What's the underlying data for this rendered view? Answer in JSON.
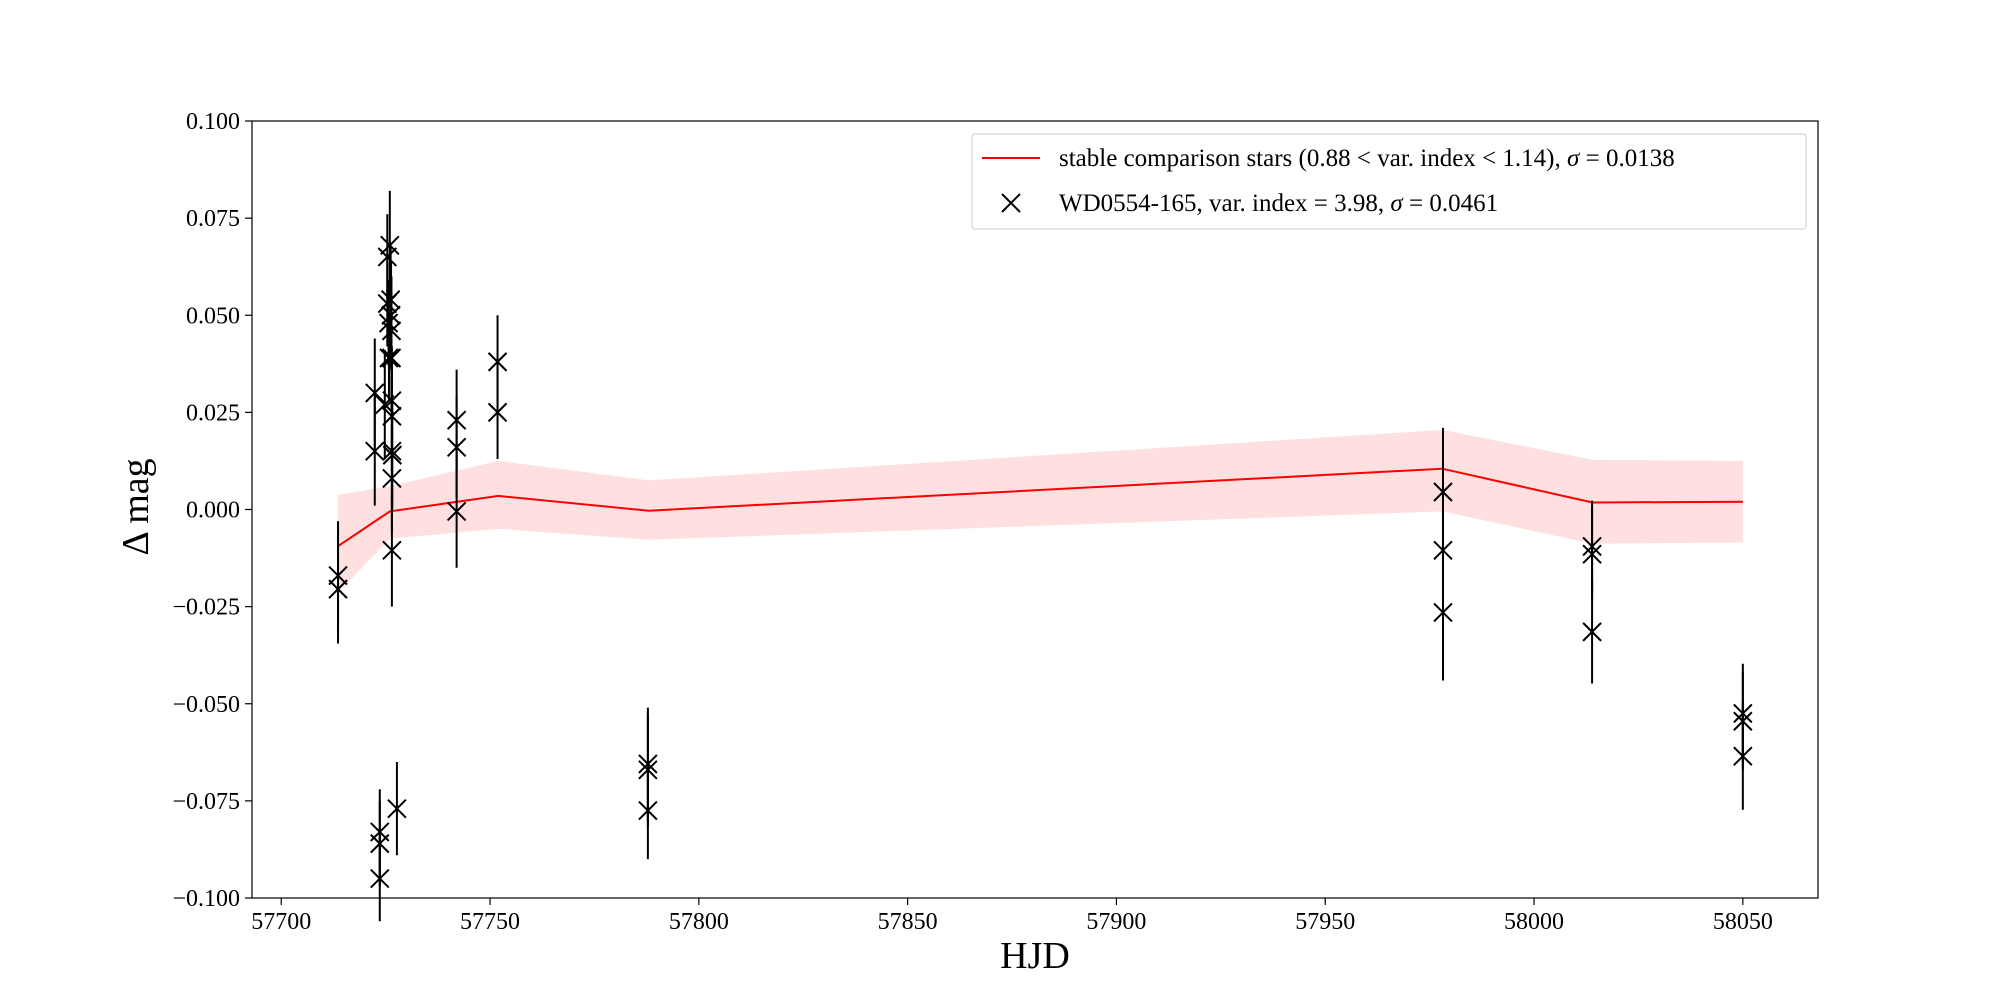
{
  "chart_data": {
    "type": "scatter",
    "xlabel": "HJD",
    "ylabel": "Δ mag",
    "xlim": [
      57693,
      58068
    ],
    "ylim": [
      -0.1,
      0.1
    ],
    "xticks": [
      57700,
      57750,
      57800,
      57850,
      57900,
      57950,
      58000,
      58050
    ],
    "xtick_labels": [
      "57700",
      "57750",
      "57800",
      "57850",
      "57900",
      "57950",
      "58000",
      "58050"
    ],
    "yticks": [
      0.1,
      0.075,
      0.05,
      0.025,
      0.0,
      -0.025,
      -0.05,
      -0.075,
      -0.1
    ],
    "ytick_labels": [
      "0.100",
      "0.075",
      "0.050",
      "0.025",
      "0.000",
      "−0.025",
      "−0.050",
      "−0.075",
      "−0.100"
    ],
    "grid": false,
    "legend_position": "top-right",
    "legend": [
      {
        "label_parts": [
          "stable comparison stars (0.88 ",
          "<",
          " var. index ",
          "<",
          " 1.14), ",
          "σ",
          " = 0.0138"
        ],
        "marker": "line"
      },
      {
        "label_parts": [
          "WD0554-165, var. index = 3.98, ",
          "σ",
          " = 0.0461"
        ],
        "marker": "x"
      }
    ],
    "series": [
      {
        "name": "stable comparison stars (0.88 < var. index < 1.14), σ = 0.0138",
        "kind": "line_with_band",
        "color": "#ff0000",
        "band_color": "#ff0000",
        "x": [
          57713.5,
          57726,
          57752,
          57788,
          57978,
          58014,
          58050
        ],
        "y": [
          -0.0095,
          -0.0005,
          0.0035,
          -0.0003,
          0.0105,
          0.0018,
          0.002
        ],
        "lower": [
          -0.0215,
          -0.0075,
          -0.005,
          -0.0078,
          -0.0005,
          -0.0088,
          -0.0085
        ],
        "upper": [
          0.0038,
          0.006,
          0.0125,
          0.0075,
          0.0205,
          0.0128,
          0.0125
        ]
      },
      {
        "name": "WD0554-165, var. index = 3.98, σ = 0.0461",
        "kind": "errorbar_scatter",
        "color": "#000000",
        "points": [
          {
            "x": 57713.6,
            "y": -0.017,
            "err": 0.014
          },
          {
            "x": 57713.6,
            "y": -0.0205,
            "err": 0.014
          },
          {
            "x": 57722.4,
            "y": 0.03,
            "err": 0.014
          },
          {
            "x": 57722.4,
            "y": 0.015,
            "err": 0.014
          },
          {
            "x": 57723.6,
            "y": -0.083,
            "err": 0.011
          },
          {
            "x": 57723.6,
            "y": -0.086,
            "err": 0.011
          },
          {
            "x": 57723.6,
            "y": -0.095,
            "err": 0.011
          },
          {
            "x": 57724.8,
            "y": 0.027,
            "err": 0.014
          },
          {
            "x": 57725.4,
            "y": 0.065,
            "err": 0.011
          },
          {
            "x": 57725.4,
            "y": 0.053,
            "err": 0.011
          },
          {
            "x": 57725.7,
            "y": 0.048,
            "err": 0.011
          },
          {
            "x": 57725.8,
            "y": 0.039,
            "err": 0.011
          },
          {
            "x": 57726.0,
            "y": 0.068,
            "err": 0.014
          },
          {
            "x": 57726.2,
            "y": 0.054,
            "err": 0.014
          },
          {
            "x": 57726.3,
            "y": 0.05,
            "err": 0.014
          },
          {
            "x": 57726.4,
            "y": 0.046,
            "err": 0.014
          },
          {
            "x": 57726.4,
            "y": 0.039,
            "err": 0.014
          },
          {
            "x": 57726.5,
            "y": 0.028,
            "err": 0.014
          },
          {
            "x": 57726.5,
            "y": 0.024,
            "err": 0.014
          },
          {
            "x": 57726.5,
            "y": 0.015,
            "err": 0.014
          },
          {
            "x": 57726.5,
            "y": 0.008,
            "err": 0.014
          },
          {
            "x": 57726.5,
            "y": -0.0105,
            "err": 0.0145
          },
          {
            "x": 57726.6,
            "y": 0.014,
            "err": 0.014
          },
          {
            "x": 57727.7,
            "y": -0.077,
            "err": 0.012
          },
          {
            "x": 57742.0,
            "y": 0.023,
            "err": 0.013
          },
          {
            "x": 57742.0,
            "y": 0.016,
            "err": 0.013
          },
          {
            "x": 57742.0,
            "y": -0.0005,
            "err": 0.0145
          },
          {
            "x": 57751.8,
            "y": 0.038,
            "err": 0.012
          },
          {
            "x": 57751.8,
            "y": 0.025,
            "err": 0.012
          },
          {
            "x": 57787.8,
            "y": -0.0655,
            "err": 0.0145
          },
          {
            "x": 57787.8,
            "y": -0.067,
            "err": 0.0145
          },
          {
            "x": 57787.8,
            "y": -0.0775,
            "err": 0.0125
          },
          {
            "x": 57978.2,
            "y": 0.0045,
            "err": 0.0165
          },
          {
            "x": 57978.2,
            "y": -0.0105,
            "err": 0.0165
          },
          {
            "x": 57978.2,
            "y": -0.0265,
            "err": 0.0175
          },
          {
            "x": 58013.9,
            "y": -0.0095,
            "err": 0.0118
          },
          {
            "x": 58013.9,
            "y": -0.0115,
            "err": 0.0118
          },
          {
            "x": 58013.9,
            "y": -0.0315,
            "err": 0.0133
          },
          {
            "x": 58050.0,
            "y": -0.0525,
            "err": 0.0128
          },
          {
            "x": 58050.0,
            "y": -0.0545,
            "err": 0.0128
          },
          {
            "x": 58050.0,
            "y": -0.0635,
            "err": 0.0138
          }
        ]
      }
    ]
  }
}
